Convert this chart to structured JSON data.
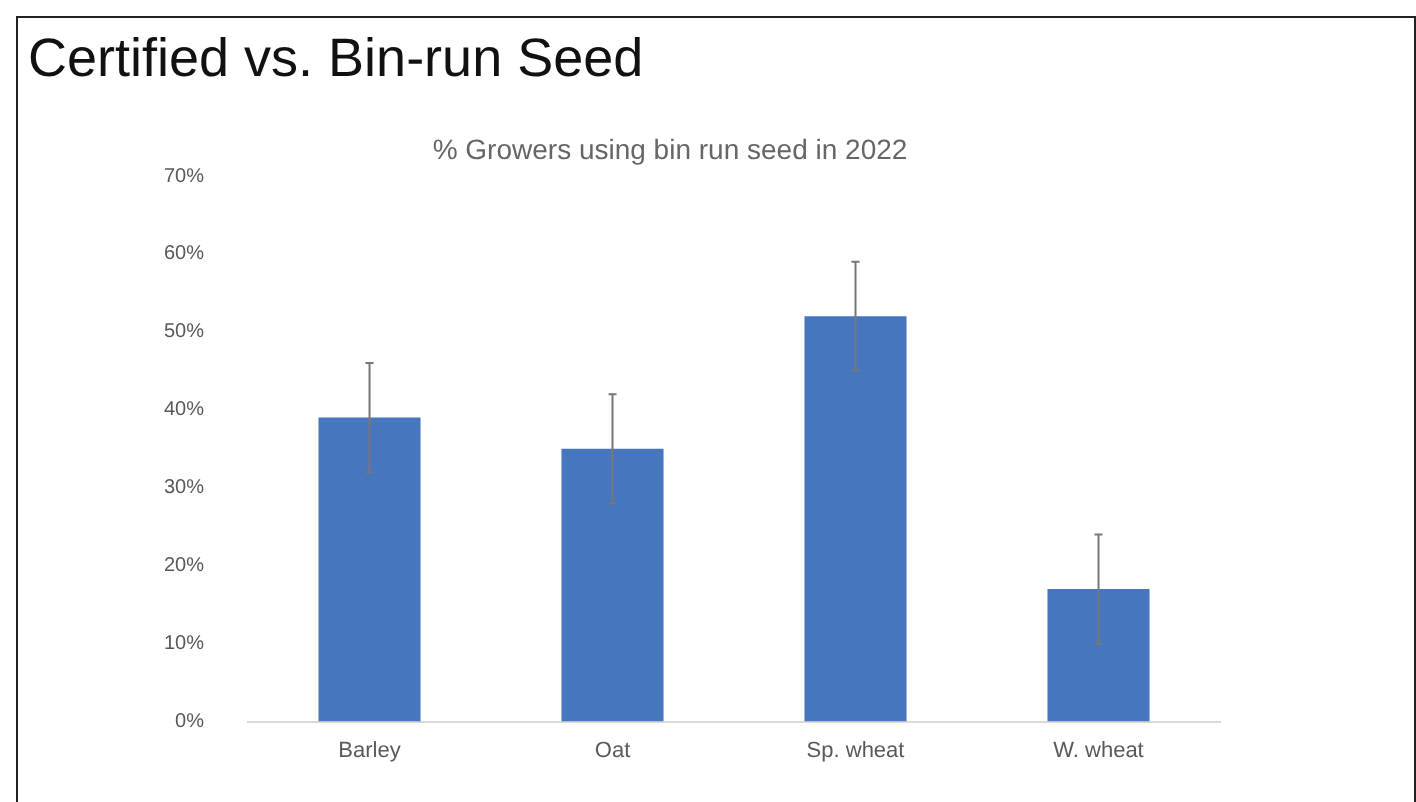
{
  "chart_data": {
    "type": "bar",
    "title": "Certified vs. Bin-run Seed",
    "subtitle": "% Growers using bin run seed in 2022",
    "categories": [
      "Barley",
      "Oat",
      "Sp. wheat",
      "W. wheat"
    ],
    "values": [
      39,
      35,
      52,
      17
    ],
    "errors": [
      7,
      7,
      7,
      7
    ],
    "color": "#4677be",
    "ylim": [
      0,
      70
    ],
    "yticks": [
      {
        "value": 0,
        "label": "0%"
      },
      {
        "value": 10,
        "label": "10%"
      },
      {
        "value": 20,
        "label": "20%"
      },
      {
        "value": 30,
        "label": "30%"
      },
      {
        "value": 40,
        "label": "40%"
      },
      {
        "value": 50,
        "label": "50%"
      },
      {
        "value": 60,
        "label": "60%"
      },
      {
        "value": 70,
        "label": "70%"
      }
    ],
    "grid": false,
    "legend": false
  }
}
